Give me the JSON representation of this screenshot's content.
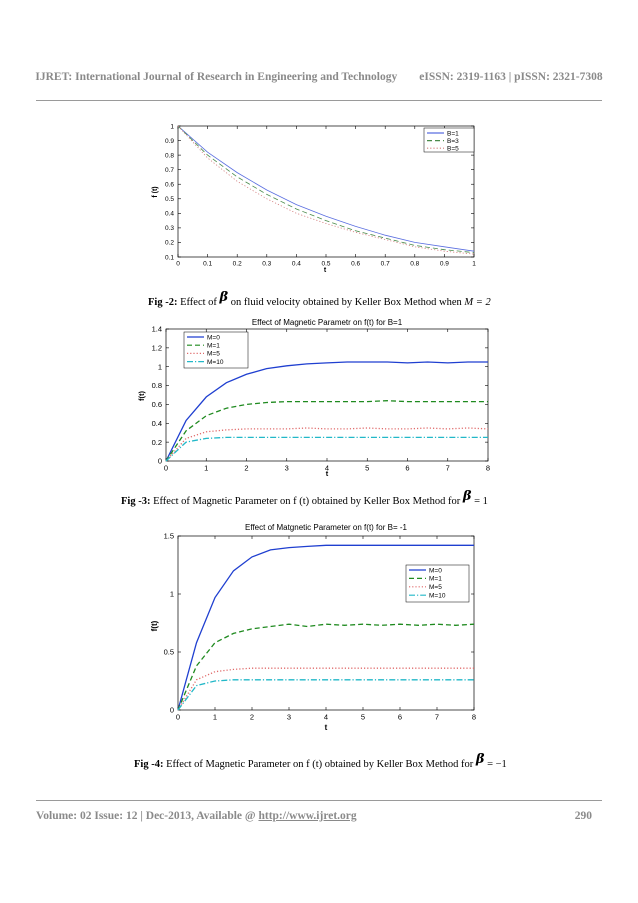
{
  "header": {
    "journal": "IJRET: International Journal of Research in Engineering and Technology",
    "issn": "eISSN: 2319-1163 | pISSN: 2321-7308"
  },
  "footer": {
    "volume": "Volume: 02 Issue: 12 | Dec-2013, Available @ ",
    "url": "http://www.ijret.org",
    "page": "290"
  },
  "captions": {
    "fig2": {
      "label": "Fig -2:",
      "pre": " Effect of ",
      "sym": "β",
      "post": " on fluid velocity obtained by Keller Box Method when ",
      "eq": "M = 2"
    },
    "fig3": {
      "label": "Fig -3:",
      "text": "  Effect of Magnetic Parameter on f (t) obtained by Keller Box Method for ",
      "sym": "β",
      "eq": " = 1"
    },
    "fig4": {
      "label": "Fig -4:",
      "text": "  Effect of Magnetic Parameter on f (t) obtained by Keller Box Method for ",
      "sym": "β",
      "eq": " = −1"
    }
  },
  "chart_data": [
    {
      "type": "line",
      "title": "",
      "xlabel": "t",
      "ylabel": "f (t)",
      "xlim": [
        0,
        1
      ],
      "ylim": [
        0.1,
        1
      ],
      "xticks": [
        "0",
        "0.1",
        "0.2",
        "0.3",
        "0.4",
        "0.5",
        "0.6",
        "0.7",
        "0.8",
        "0.9",
        "1"
      ],
      "yticks": [
        "0.1",
        "0.2",
        "0.3",
        "0.4",
        "0.5",
        "0.6",
        "0.7",
        "0.8",
        "0.9",
        "1"
      ],
      "legend_position": "top-right",
      "grid": false,
      "series": [
        {
          "name": "B=1",
          "color": "#5a6ee0",
          "dash": "solid",
          "x": [
            0,
            0.1,
            0.2,
            0.3,
            0.4,
            0.5,
            0.6,
            0.7,
            0.8,
            0.9,
            1
          ],
          "y": [
            1,
            0.82,
            0.68,
            0.56,
            0.46,
            0.38,
            0.31,
            0.25,
            0.2,
            0.17,
            0.14
          ]
        },
        {
          "name": "B=3",
          "color": "#4a8a4a",
          "dash": "dashed",
          "x": [
            0,
            0.1,
            0.2,
            0.3,
            0.4,
            0.5,
            0.6,
            0.7,
            0.8,
            0.9,
            1
          ],
          "y": [
            1,
            0.8,
            0.65,
            0.53,
            0.43,
            0.35,
            0.28,
            0.23,
            0.18,
            0.15,
            0.13
          ]
        },
        {
          "name": "B=5",
          "color": "#d27c7c",
          "dash": "dotted",
          "x": [
            0,
            0.1,
            0.2,
            0.3,
            0.4,
            0.5,
            0.6,
            0.7,
            0.8,
            0.9,
            1
          ],
          "y": [
            1,
            0.78,
            0.62,
            0.5,
            0.4,
            0.33,
            0.27,
            0.22,
            0.17,
            0.14,
            0.12
          ]
        }
      ]
    },
    {
      "type": "line",
      "title": "Effect of Magnetic Parametr on f(t) for B=1",
      "xlabel": "t",
      "ylabel": "f(t)",
      "xlim": [
        0,
        8
      ],
      "ylim": [
        0,
        1.4
      ],
      "xticks": [
        "0",
        "1",
        "2",
        "3",
        "4",
        "5",
        "6",
        "7",
        "8"
      ],
      "yticks": [
        "0",
        "0.2",
        "0.4",
        "0.6",
        "0.8",
        "1",
        "1.2",
        "1.4"
      ],
      "legend_position": "top-left",
      "grid": false,
      "series": [
        {
          "name": "M=0",
          "color": "#1f3fd0",
          "dash": "solid",
          "x": [
            0,
            0.5,
            1,
            1.5,
            2,
            2.5,
            3,
            3.5,
            4,
            4.5,
            5,
            5.5,
            6,
            6.5,
            7,
            7.5,
            8
          ],
          "y": [
            0,
            0.43,
            0.68,
            0.83,
            0.92,
            0.98,
            1.01,
            1.03,
            1.04,
            1.05,
            1.05,
            1.05,
            1.04,
            1.05,
            1.04,
            1.05,
            1.05
          ]
        },
        {
          "name": "M=1",
          "color": "#1f8a1f",
          "dash": "dashed",
          "x": [
            0,
            0.5,
            1,
            1.5,
            2,
            2.5,
            3,
            3.5,
            4,
            4.5,
            5,
            5.5,
            6,
            6.5,
            7,
            7.5,
            8
          ],
          "y": [
            0,
            0.32,
            0.48,
            0.56,
            0.6,
            0.62,
            0.63,
            0.63,
            0.63,
            0.63,
            0.63,
            0.64,
            0.63,
            0.63,
            0.63,
            0.63,
            0.63
          ]
        },
        {
          "name": "M=5",
          "color": "#e06a6a",
          "dash": "dotted",
          "x": [
            0,
            0.5,
            1,
            1.5,
            2,
            2.5,
            3,
            3.5,
            4,
            4.5,
            5,
            5.5,
            6,
            6.5,
            7,
            7.5,
            8
          ],
          "y": [
            0,
            0.24,
            0.31,
            0.33,
            0.34,
            0.34,
            0.34,
            0.35,
            0.34,
            0.34,
            0.35,
            0.34,
            0.34,
            0.35,
            0.34,
            0.35,
            0.34
          ]
        },
        {
          "name": "M=10",
          "color": "#22b8c8",
          "dash": "dashdot",
          "x": [
            0,
            0.5,
            1,
            1.5,
            2,
            2.5,
            3,
            3.5,
            4,
            4.5,
            5,
            5.5,
            6,
            6.5,
            7,
            7.5,
            8
          ],
          "y": [
            0,
            0.2,
            0.24,
            0.25,
            0.25,
            0.25,
            0.25,
            0.25,
            0.25,
            0.25,
            0.25,
            0.25,
            0.25,
            0.25,
            0.25,
            0.25,
            0.25
          ]
        }
      ]
    },
    {
      "type": "line",
      "title": "Effect of Matgnetic Parameter on f(t) for B= -1",
      "xlabel": "t",
      "ylabel": "f(t)",
      "xlim": [
        0,
        8
      ],
      "ylim": [
        0,
        1.5
      ],
      "xticks": [
        "0",
        "1",
        "2",
        "3",
        "4",
        "5",
        "6",
        "7",
        "8"
      ],
      "yticks": [
        "0",
        "0.5",
        "1",
        "1.5"
      ],
      "legend_position": "right",
      "grid": false,
      "series": [
        {
          "name": "M=0",
          "color": "#1f3fd0",
          "dash": "solid",
          "x": [
            0,
            0.5,
            1,
            1.5,
            2,
            2.5,
            3,
            3.5,
            4,
            5,
            6,
            7,
            8
          ],
          "y": [
            0,
            0.58,
            0.97,
            1.2,
            1.32,
            1.38,
            1.4,
            1.41,
            1.42,
            1.42,
            1.42,
            1.42,
            1.42
          ]
        },
        {
          "name": "M=1",
          "color": "#1f8a1f",
          "dash": "dashed",
          "x": [
            0,
            0.5,
            1,
            1.5,
            2,
            2.5,
            3,
            3.5,
            4,
            4.5,
            5,
            5.5,
            6,
            6.5,
            7,
            7.5,
            8
          ],
          "y": [
            0,
            0.38,
            0.58,
            0.66,
            0.7,
            0.72,
            0.74,
            0.72,
            0.74,
            0.73,
            0.74,
            0.73,
            0.74,
            0.73,
            0.74,
            0.73,
            0.74
          ]
        },
        {
          "name": "M=5",
          "color": "#e06a6a",
          "dash": "dotted",
          "x": [
            0,
            0.5,
            1,
            1.5,
            2,
            2.5,
            3,
            4,
            5,
            6,
            7,
            8
          ],
          "y": [
            0,
            0.26,
            0.33,
            0.35,
            0.36,
            0.36,
            0.36,
            0.36,
            0.36,
            0.36,
            0.36,
            0.36
          ]
        },
        {
          "name": "M=10",
          "color": "#22b8c8",
          "dash": "dashdot",
          "x": [
            0,
            0.5,
            1,
            1.5,
            2,
            3,
            4,
            5,
            6,
            7,
            8
          ],
          "y": [
            0,
            0.21,
            0.25,
            0.26,
            0.26,
            0.26,
            0.26,
            0.26,
            0.26,
            0.26,
            0.26
          ]
        }
      ]
    }
  ]
}
